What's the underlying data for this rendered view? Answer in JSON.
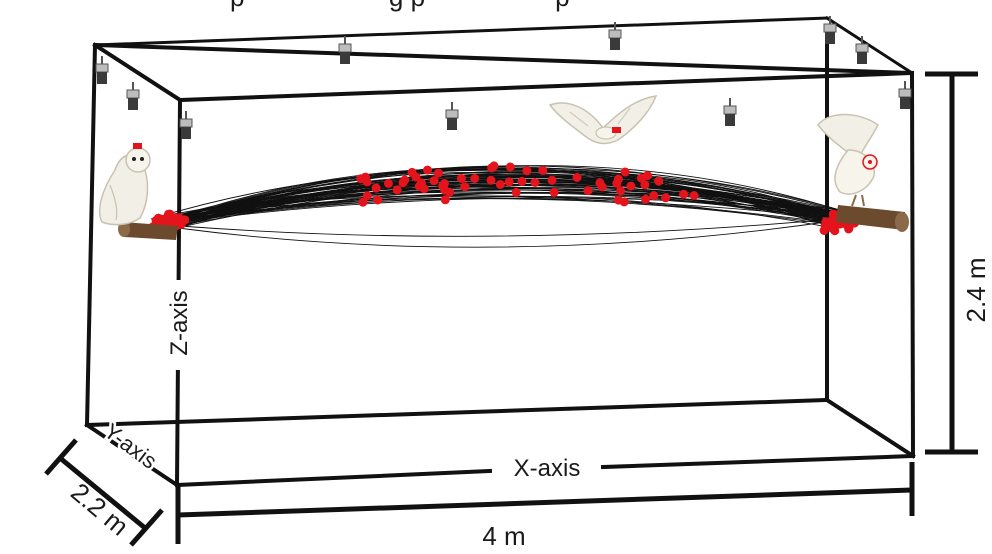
{
  "diagram": {
    "title_fragment": "p                    g p                  p",
    "labels": {
      "x_axis": "X-axis",
      "y_axis": "Y-axis",
      "z_axis": "Z-axis",
      "length": "4 m",
      "depth": "2.2 m",
      "height": "2.4 m"
    },
    "colors": {
      "frame": "#111111",
      "trajectory": "#111111",
      "marker": "#e3141b",
      "owl_white": "#f2efe6",
      "owl_shadow": "#c9c2b0",
      "perch": "#6b4a2e",
      "camera": "#3a3a3a"
    },
    "icons": [
      "owl-perched-icon",
      "owl-flying-icon",
      "owl-landing-icon",
      "perch-icon",
      "camera-icon"
    ]
  }
}
